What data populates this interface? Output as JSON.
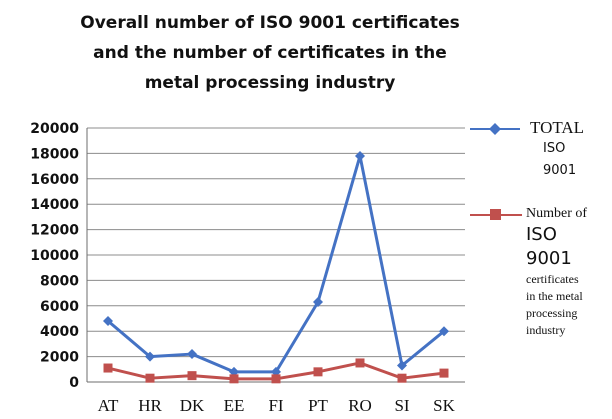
{
  "chart_data": {
    "type": "line",
    "title_lines": [
      "Overall number of ISO 9001  certificates",
      "and the number of certificates in the",
      "metal processing industry"
    ],
    "categories": [
      "AT",
      "HR",
      "DK",
      "EE",
      "FI",
      "PT",
      "RO",
      "SI",
      "SK"
    ],
    "ylim": [
      0,
      20000
    ],
    "yticks": [
      "0",
      "2000",
      "4000",
      "6000",
      "8000",
      "10000",
      "12000",
      "14000",
      "16000",
      "18000",
      "20000"
    ],
    "grid": true,
    "legend_position": "right",
    "series": [
      {
        "name": "TOTAL ISO 9001",
        "legend_lines": [
          "TOTAL",
          "ISO",
          "9001"
        ],
        "color": "#4472c4",
        "marker": "diamond",
        "values": [
          4800,
          2000,
          2200,
          800,
          800,
          6300,
          17800,
          1300,
          4000
        ]
      },
      {
        "name": "Number of ISO 9001 certificates in the metal processing industry",
        "legend_lines": [
          "Number of",
          "ISO",
          "9001",
          "certificates",
          "in the metal",
          "processing",
          "industry"
        ],
        "color": "#c0504d",
        "marker": "square",
        "values": [
          1100,
          300,
          500,
          250,
          250,
          800,
          1500,
          300,
          700
        ]
      }
    ]
  }
}
